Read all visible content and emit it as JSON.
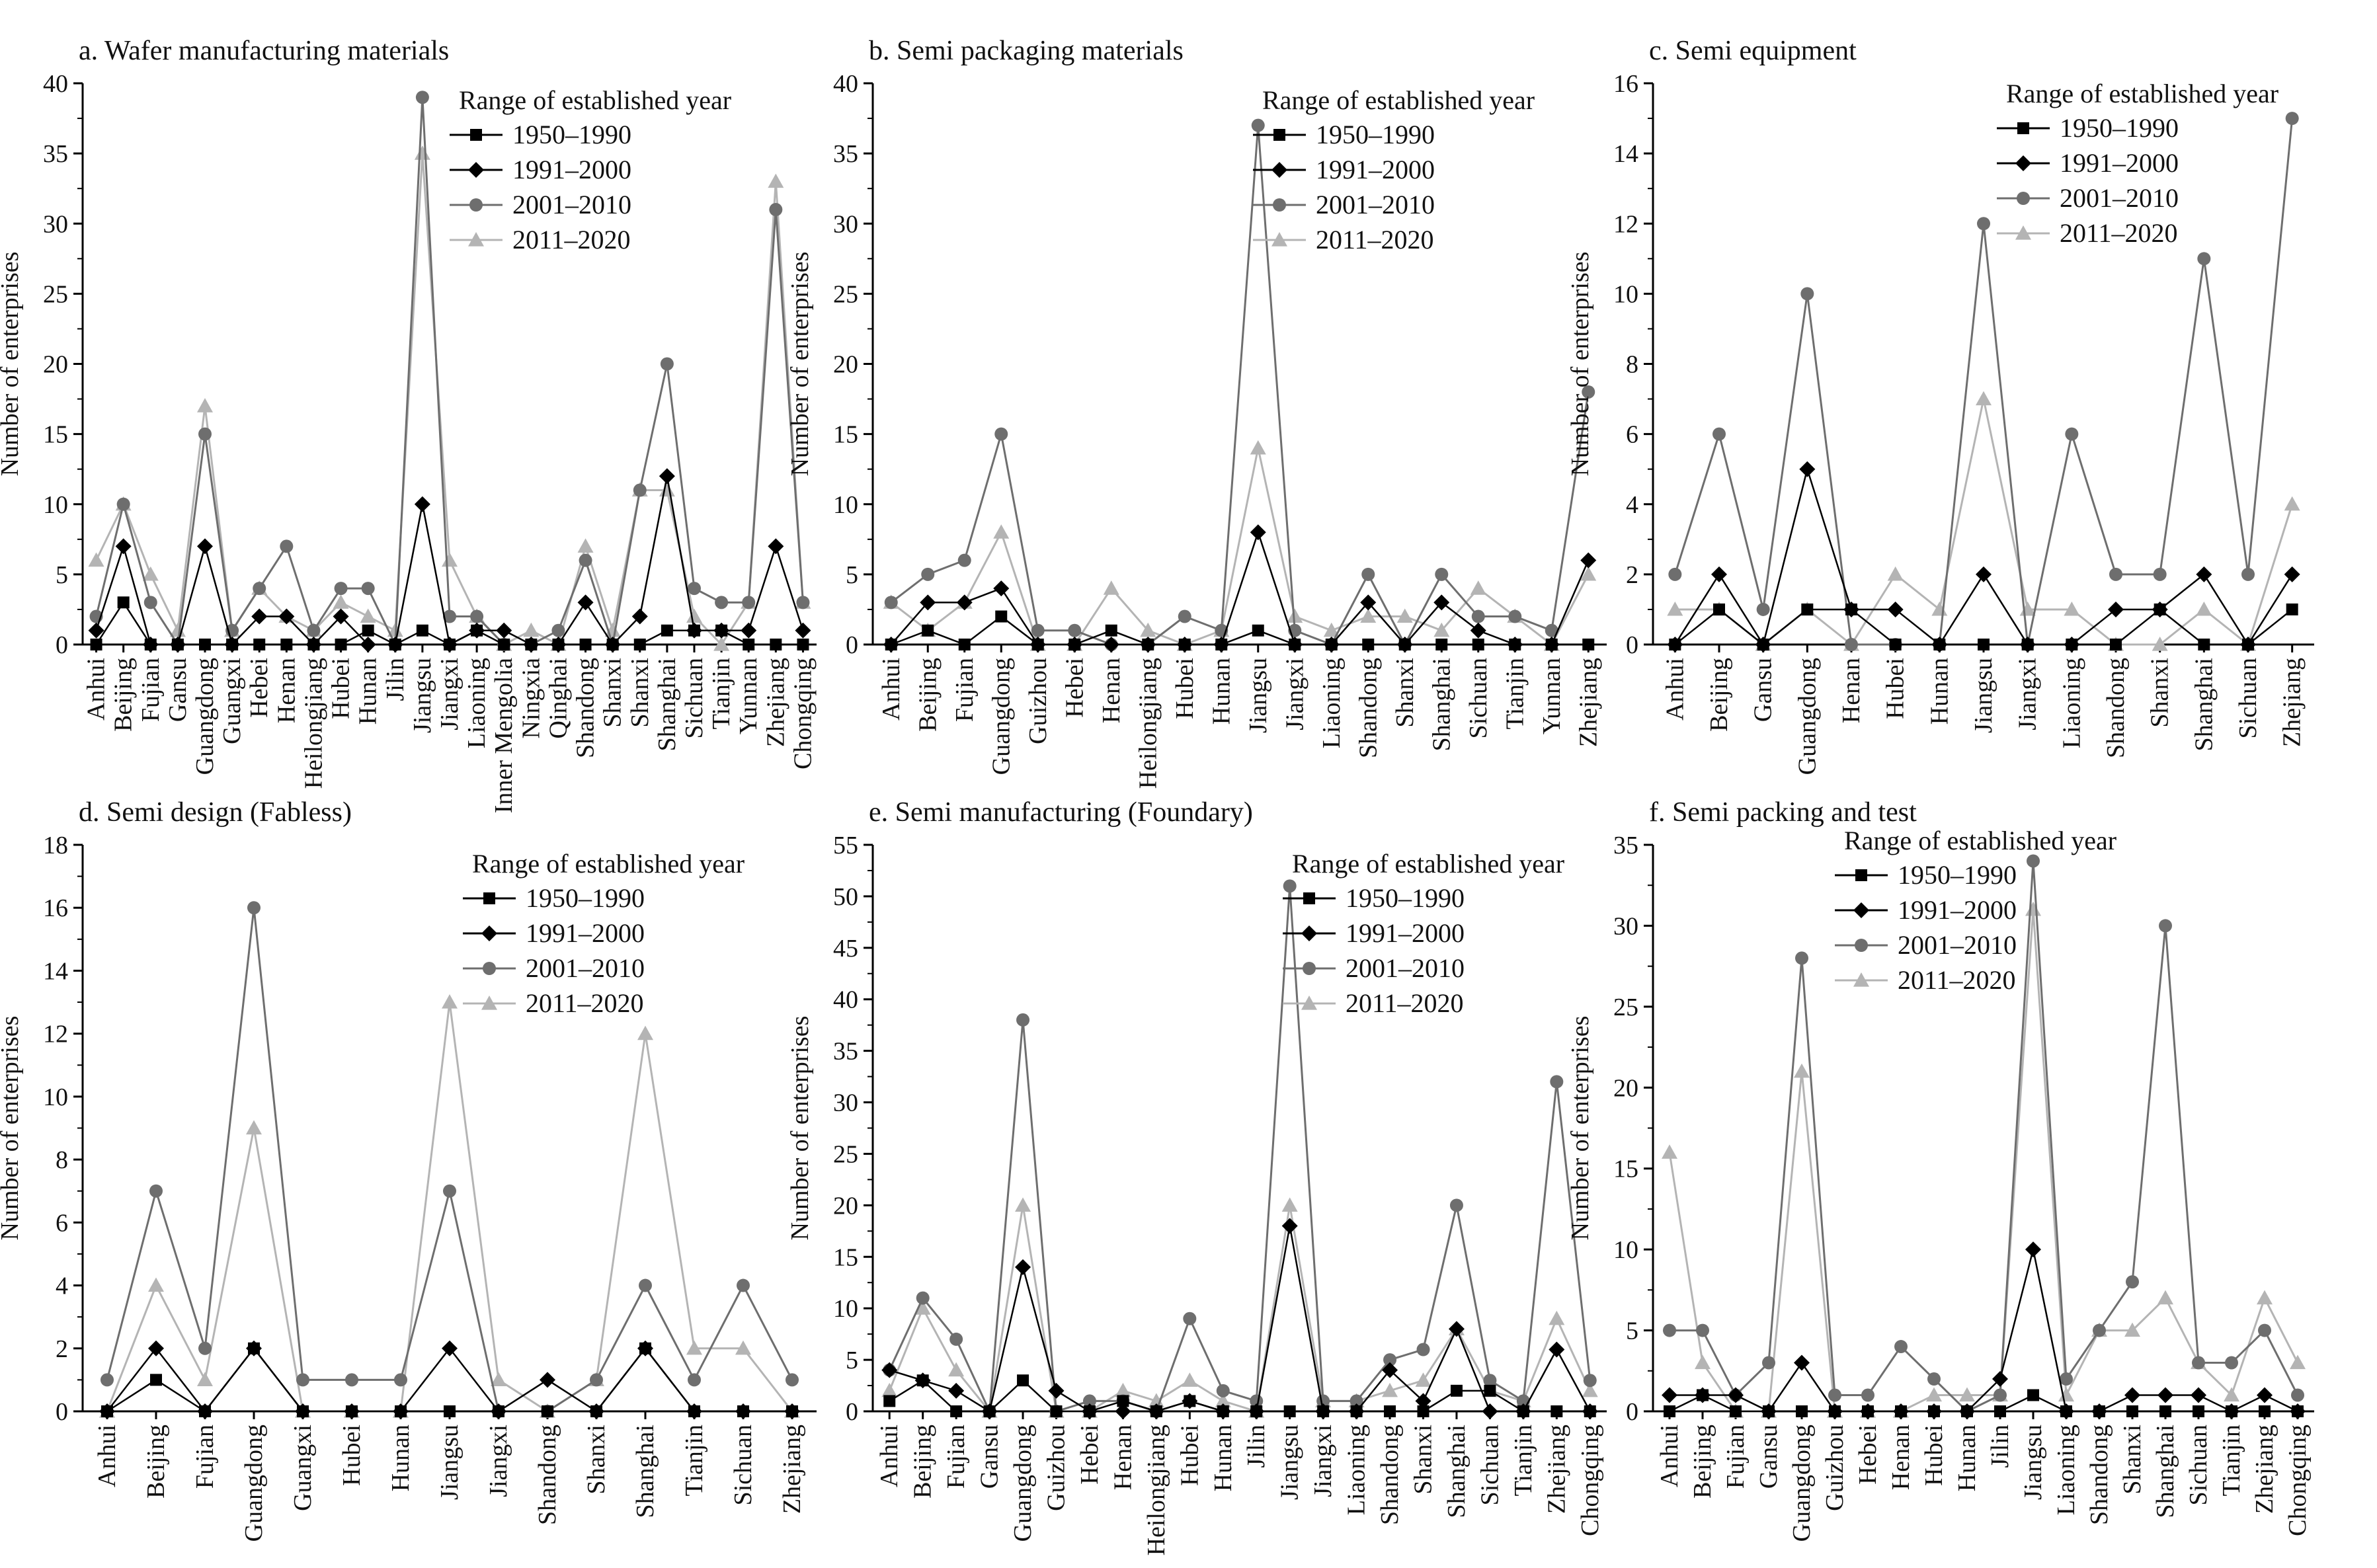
{
  "series_names": [
    "1950–1990",
    "1991–2000",
    "2001–2010",
    "2011–2020"
  ],
  "series_colors": [
    "#000000",
    "#000000",
    "#6e6e6e",
    "#b4b4b4"
  ],
  "series_markers": [
    "square",
    "diamond",
    "circle",
    "triangle"
  ],
  "chart_data": [
    {
      "type": "line",
      "title": "a. Wafer manufacturing materials",
      "ylabel": "Number of enterprises",
      "xlabel": "",
      "legend_title": "Range of established year",
      "legend_position": "top-right",
      "ylim": [
        0,
        40
      ],
      "ytick_step": 5,
      "categories": [
        "Anhui",
        "Beijing",
        "Fujian",
        "Gansu",
        "Guangdong",
        "Guangxi",
        "Hebei",
        "Henan",
        "Heilongjiang",
        "Hubei",
        "Hunan",
        "Jilin",
        "Jiangsu",
        "Jiangxi",
        "Liaoning",
        "Inner Mengolia",
        "Ningxia",
        "Qinghai",
        "Shandong",
        "Shanxi",
        "Shanxi",
        "Shanghai",
        "Sichuan",
        "Tianjin",
        "Yunnan",
        "Zhejiang",
        "Chongqing"
      ],
      "series": [
        {
          "name": "1950–1990",
          "values": [
            0,
            3,
            0,
            0,
            0,
            0,
            0,
            0,
            0,
            0,
            1,
            0,
            1,
            0,
            1,
            0,
            0,
            0,
            0,
            0,
            0,
            1,
            1,
            1,
            0,
            0,
            0
          ]
        },
        {
          "name": "1991–2000",
          "values": [
            1,
            7,
            0,
            0,
            7,
            0,
            2,
            2,
            0,
            2,
            0,
            0,
            10,
            0,
            1,
            1,
            0,
            0,
            3,
            0,
            2,
            12,
            1,
            1,
            1,
            7,
            1
          ]
        },
        {
          "name": "2001–2010",
          "values": [
            2,
            10,
            3,
            0,
            15,
            1,
            4,
            7,
            1,
            4,
            4,
            0,
            39,
            2,
            2,
            0,
            0,
            1,
            6,
            0,
            11,
            20,
            4,
            3,
            3,
            31,
            3
          ]
        },
        {
          "name": "2011–2020",
          "values": [
            6,
            10,
            5,
            1,
            17,
            1,
            4,
            2,
            1,
            3,
            2,
            1,
            35,
            6,
            2,
            0,
            1,
            0,
            7,
            1,
            11,
            11,
            2,
            0,
            3,
            33,
            3
          ]
        }
      ]
    },
    {
      "type": "line",
      "title": "b. Semi packaging materials",
      "ylabel": "Number of enterprises",
      "xlabel": "",
      "legend_title": "Range of established year",
      "legend_position": "top-right",
      "ylim": [
        0,
        40
      ],
      "ytick_step": 5,
      "categories": [
        "Anhui",
        "Beijing",
        "Fujian",
        "Guangdong",
        "Guizhou",
        "Hebei",
        "Henan",
        "Heilongjiang",
        "Hubei",
        "Hunan",
        "Jiangsu",
        "Jiangxi",
        "Liaoning",
        "Shandong",
        "Shanxi",
        "Shanghai",
        "Sichuan",
        "Tianjin",
        "Yunnan",
        "Zhejiang"
      ],
      "series": [
        {
          "name": "1950–1990",
          "values": [
            0,
            1,
            0,
            2,
            0,
            0,
            1,
            0,
            0,
            0,
            1,
            0,
            0,
            0,
            0,
            0,
            0,
            0,
            0,
            0
          ]
        },
        {
          "name": "1991–2000",
          "values": [
            0,
            3,
            3,
            4,
            0,
            0,
            0,
            0,
            0,
            0,
            8,
            0,
            0,
            3,
            0,
            3,
            1,
            0,
            0,
            6
          ]
        },
        {
          "name": "2001–2010",
          "values": [
            3,
            5,
            6,
            15,
            1,
            1,
            0,
            0,
            2,
            1,
            37,
            1,
            0,
            5,
            0,
            5,
            2,
            2,
            1,
            18
          ]
        },
        {
          "name": "2011–2020",
          "values": [
            3,
            1,
            3,
            8,
            0,
            0,
            4,
            1,
            0,
            1,
            14,
            2,
            1,
            2,
            2,
            1,
            4,
            2,
            0,
            5
          ]
        }
      ]
    },
    {
      "type": "line",
      "title": "c. Semi equipment",
      "ylabel": "Number of enterprises",
      "xlabel": "",
      "legend_title": "Range of established year",
      "legend_position": "top-right",
      "ylim": [
        0,
        16
      ],
      "ytick_step": 2,
      "categories": [
        "Anhui",
        "Beijing",
        "Gansu",
        "Guangdong",
        "Henan",
        "Hubei",
        "Hunan",
        "Jiangsu",
        "Jiangxi",
        "Liaoning",
        "Shandong",
        "Shanxi",
        "Shanghai",
        "Sichuan",
        "Zhejiang"
      ],
      "series": [
        {
          "name": "1950–1990",
          "values": [
            0,
            1,
            0,
            1,
            1,
            0,
            0,
            0,
            0,
            0,
            0,
            1,
            0,
            0,
            1
          ]
        },
        {
          "name": "1991–2000",
          "values": [
            0,
            2,
            0,
            5,
            1,
            1,
            0,
            2,
            0,
            0,
            1,
            1,
            2,
            0,
            2
          ]
        },
        {
          "name": "2001–2010",
          "values": [
            2,
            6,
            1,
            10,
            0,
            0,
            0,
            12,
            0,
            6,
            2,
            2,
            11,
            2,
            15
          ]
        },
        {
          "name": "2011–2020",
          "values": [
            1,
            1,
            0,
            1,
            0,
            2,
            1,
            7,
            1,
            1,
            0,
            0,
            1,
            0,
            4
          ]
        }
      ]
    },
    {
      "type": "line",
      "title": "d. Semi design (Fabless)",
      "ylabel": "Number of enterprises",
      "xlabel": "",
      "legend_title": "Range of established year",
      "legend_position": "top-right",
      "ylim": [
        0,
        18
      ],
      "ytick_step": 2,
      "categories": [
        "Anhui",
        "Beijing",
        "Fujian",
        "Guangdong",
        "Guangxi",
        "Hubei",
        "Hunan",
        "Jiangsu",
        "Jiangxi",
        "Shandong",
        "Shanxi",
        "Shanghai",
        "Tianjin",
        "Sichuan",
        "Zhejiang"
      ],
      "series": [
        {
          "name": "1950–1990",
          "values": [
            0,
            1,
            0,
            2,
            0,
            0,
            0,
            0,
            0,
            0,
            0,
            2,
            0,
            0,
            0
          ]
        },
        {
          "name": "1991–2000",
          "values": [
            0,
            2,
            0,
            2,
            0,
            0,
            0,
            2,
            0,
            1,
            0,
            2,
            0,
            0,
            0
          ]
        },
        {
          "name": "2001–2010",
          "values": [
            1,
            7,
            2,
            16,
            1,
            1,
            1,
            7,
            0,
            0,
            1,
            4,
            1,
            4,
            1
          ]
        },
        {
          "name": "2011–2020",
          "values": [
            0,
            4,
            1,
            9,
            0,
            0,
            0,
            13,
            1,
            0,
            1,
            12,
            2,
            2,
            0
          ]
        }
      ]
    },
    {
      "type": "line",
      "title": "e. Semi manufacturing (Foundary)",
      "ylabel": "Number of enterprises",
      "xlabel": "",
      "legend_title": "Range of established year",
      "legend_position": "top-right",
      "ylim": [
        0,
        55
      ],
      "ytick_step": 5,
      "categories": [
        "Anhui",
        "Beijing",
        "Fujian",
        "Gansu",
        "Guangdong",
        "Guizhou",
        "Hebei",
        "Henan",
        "Heilongjiang",
        "Hubei",
        "Hunan",
        "Jilin",
        "Jiangsu",
        "Jiangxi",
        "Liaoning",
        "Shandong",
        "Shanxi",
        "Shanghai",
        "Sichuan",
        "Tianjin",
        "Zhejiang",
        "Chongqing"
      ],
      "series": [
        {
          "name": "1950–1990",
          "values": [
            1,
            3,
            0,
            0,
            3,
            0,
            0,
            1,
            0,
            1,
            0,
            0,
            0,
            0,
            0,
            0,
            0,
            2,
            2,
            0,
            0,
            0
          ]
        },
        {
          "name": "1991–2000",
          "values": [
            4,
            3,
            2,
            0,
            14,
            2,
            0,
            0,
            0,
            1,
            0,
            0,
            18,
            0,
            0,
            4,
            1,
            8,
            0,
            0,
            6,
            0
          ]
        },
        {
          "name": "2001–2010",
          "values": [
            4,
            11,
            7,
            0,
            38,
            0,
            1,
            1,
            0,
            9,
            2,
            1,
            51,
            1,
            1,
            5,
            6,
            20,
            3,
            1,
            32,
            3
          ]
        },
        {
          "name": "2011–2020",
          "values": [
            2,
            10,
            4,
            0,
            20,
            0,
            0,
            2,
            1,
            3,
            1,
            0,
            20,
            1,
            1,
            2,
            3,
            8,
            2,
            1,
            9,
            2
          ]
        }
      ]
    },
    {
      "type": "line",
      "title": "f. Semi packing and test",
      "ylabel": "Number of enterprises",
      "xlabel": "",
      "legend_title": "Range of established year",
      "legend_position": "top-center",
      "ylim": [
        0,
        35
      ],
      "ytick_step": 5,
      "categories": [
        "Anhui",
        "Beijing",
        "Fujian",
        "Gansu",
        "Guangdong",
        "Guizhou",
        "Hebei",
        "Henan",
        "Hubei",
        "Hunan",
        "Jilin",
        "Jiangsu",
        "Liaoning",
        "Shandong",
        "Shanxi",
        "Shanghai",
        "Sichuan",
        "Tianjin",
        "Zhejiang",
        "Chongqing"
      ],
      "series": [
        {
          "name": "1950–1990",
          "values": [
            0,
            1,
            0,
            0,
            0,
            0,
            0,
            0,
            0,
            0,
            0,
            1,
            0,
            0,
            0,
            0,
            0,
            0,
            0,
            0
          ]
        },
        {
          "name": "1991–2000",
          "values": [
            1,
            1,
            1,
            0,
            3,
            0,
            0,
            0,
            0,
            0,
            2,
            10,
            0,
            0,
            1,
            1,
            1,
            0,
            1,
            0
          ]
        },
        {
          "name": "2001–2010",
          "values": [
            5,
            5,
            1,
            3,
            28,
            1,
            1,
            4,
            2,
            0,
            1,
            34,
            2,
            5,
            8,
            30,
            3,
            3,
            5,
            1
          ]
        },
        {
          "name": "2011–2020",
          "values": [
            16,
            3,
            0,
            0,
            21,
            0,
            0,
            0,
            1,
            1,
            1,
            31,
            1,
            5,
            5,
            7,
            3,
            1,
            7,
            3
          ]
        }
      ]
    }
  ]
}
